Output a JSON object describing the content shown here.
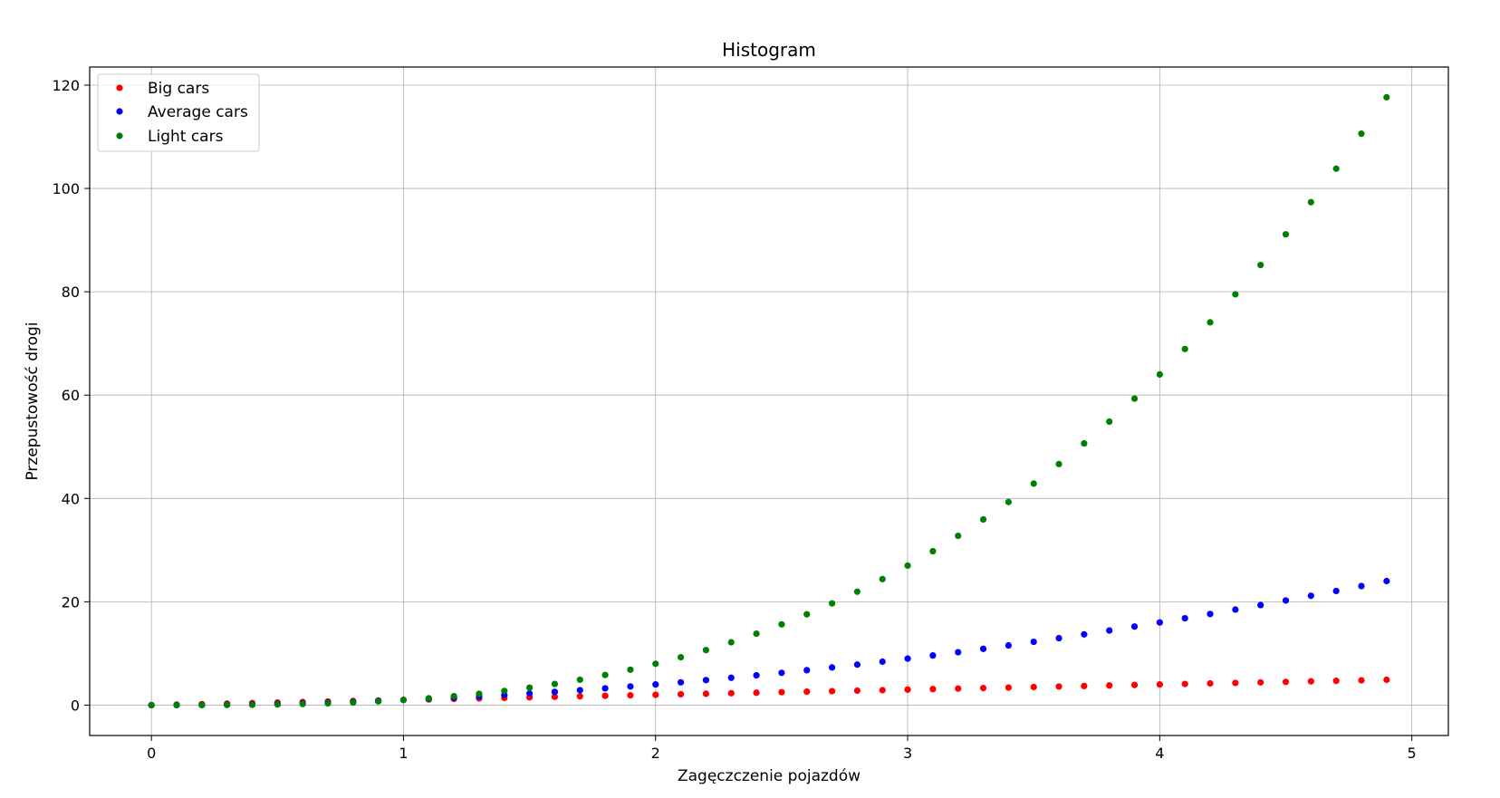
{
  "chart_data": {
    "type": "scatter",
    "title": "Histogram",
    "xlabel": "Zagęczczenie pojazdów",
    "ylabel": "Przepustowość drogi",
    "xlim": [
      -0.245,
      5.145
    ],
    "ylim": [
      -5.88,
      123.5
    ],
    "xticks": [
      0,
      1,
      2,
      3,
      4,
      5
    ],
    "yticks": [
      0,
      20,
      40,
      60,
      80,
      100,
      120
    ],
    "grid": true,
    "legend_position": "upper-left",
    "x": [
      0,
      0.1,
      0.2,
      0.3,
      0.4,
      0.5,
      0.6,
      0.7,
      0.8,
      0.9,
      1.0,
      1.1,
      1.2,
      1.3,
      1.4,
      1.5,
      1.6,
      1.7,
      1.8,
      1.9,
      2.0,
      2.1,
      2.2,
      2.3,
      2.4,
      2.5,
      2.6,
      2.7,
      2.8,
      2.9,
      3.0,
      3.1,
      3.2,
      3.3,
      3.4,
      3.5,
      3.6,
      3.7,
      3.8,
      3.9,
      4.0,
      4.1,
      4.2,
      4.3,
      4.4,
      4.5,
      4.6,
      4.7,
      4.8,
      4.9
    ],
    "series": [
      {
        "name": "Big cars",
        "color": "#ff0000",
        "values": [
          0,
          0.1,
          0.2,
          0.3,
          0.4,
          0.5,
          0.6,
          0.7,
          0.8,
          0.9,
          1.0,
          1.1,
          1.2,
          1.3,
          1.4,
          1.5,
          1.6,
          1.7,
          1.8,
          1.9,
          2.0,
          2.1,
          2.2,
          2.3,
          2.4,
          2.5,
          2.6,
          2.7,
          2.8,
          2.9,
          3.0,
          3.1,
          3.2,
          3.3,
          3.4,
          3.5,
          3.6,
          3.7,
          3.8,
          3.9,
          4.0,
          4.1,
          4.2,
          4.3,
          4.4,
          4.5,
          4.6,
          4.7,
          4.8,
          4.9
        ]
      },
      {
        "name": "Average cars",
        "color": "#0000ff",
        "values": [
          0,
          0.01,
          0.04,
          0.09,
          0.16,
          0.25,
          0.36,
          0.49,
          0.64,
          0.81,
          1.0,
          1.21,
          1.44,
          1.69,
          1.96,
          2.25,
          2.56,
          2.89,
          3.24,
          3.61,
          4.0,
          4.41,
          4.84,
          5.29,
          5.76,
          6.25,
          6.76,
          7.29,
          7.84,
          8.41,
          9.0,
          9.61,
          10.24,
          10.89,
          11.56,
          12.25,
          12.96,
          13.69,
          14.44,
          15.21,
          16.0,
          16.81,
          17.64,
          18.49,
          19.36,
          20.25,
          21.16,
          22.09,
          23.04,
          24.01
        ]
      },
      {
        "name": "Light cars",
        "color": "#008000",
        "values": [
          0,
          0.001,
          0.008,
          0.027,
          0.064,
          0.125,
          0.216,
          0.343,
          0.512,
          0.729,
          1.0,
          1.331,
          1.728,
          2.197,
          2.744,
          3.375,
          4.096,
          4.913,
          5.832,
          6.859,
          8.0,
          9.261,
          10.648,
          12.167,
          13.824,
          15.625,
          17.576,
          19.683,
          21.952,
          24.389,
          27.0,
          29.791,
          32.768,
          35.937,
          39.304,
          42.875,
          46.656,
          50.653,
          54.872,
          59.319,
          64.0,
          68.921,
          74.088,
          79.507,
          85.184,
          91.125,
          97.336,
          103.823,
          110.592,
          117.649
        ]
      }
    ]
  }
}
